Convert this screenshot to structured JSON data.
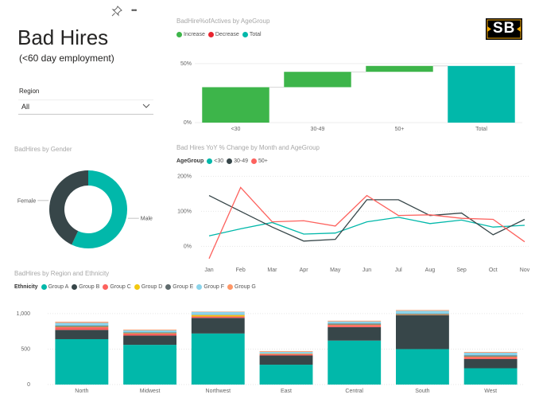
{
  "header": {
    "title": "Bad Hires",
    "subtitle": "(<60 day employment)",
    "logo": "SB"
  },
  "toolbar": {
    "pin_icon": "pin-icon",
    "more_icon": "more-options-icon",
    "more_label": "•••"
  },
  "filter": {
    "label": "Region",
    "value": "All"
  },
  "visuals": {
    "waterfall_title": "BadHire%ofActives by AgeGroup",
    "gender_title": "BadHires by Gender",
    "line_title": "Bad Hires YoY % Change by Month and AgeGroup",
    "stacked_title": "BadHires by Region and Ethnicity"
  },
  "colors": {
    "increase": "#3db54a",
    "decrease": "#e8252f",
    "total": "#01b8aa",
    "teal": "#01b8aa",
    "dark": "#374649",
    "red": "#fd625e",
    "yellow": "#f2c80f",
    "grey": "#5f6b6d",
    "lightblue": "#8ad4eb",
    "orange": "#fe9666"
  },
  "chart_data": [
    {
      "type": "bar",
      "subtype": "waterfall",
      "title": "BadHire%ofActives by AgeGroup",
      "legend": [
        "Increase",
        "Decrease",
        "Total"
      ],
      "categories": [
        "<30",
        "30-49",
        "50+",
        "Total"
      ],
      "values": [
        30,
        13,
        5,
        48
      ],
      "kinds": [
        "increase",
        "increase",
        "increase",
        "total"
      ],
      "yticks": [
        "0%",
        "50%"
      ],
      "ylim": [
        0,
        60
      ]
    },
    {
      "type": "pie",
      "subtype": "donut",
      "title": "BadHires by Gender",
      "labels": [
        "Male",
        "Female"
      ],
      "values": [
        57,
        43
      ]
    },
    {
      "type": "line",
      "title": "Bad Hires YoY % Change by Month and AgeGroup",
      "legend_title": "AgeGroup",
      "categories": [
        "Jan",
        "Feb",
        "Mar",
        "Apr",
        "May",
        "Jun",
        "Jul",
        "Aug",
        "Sep",
        "Oct",
        "Nov"
      ],
      "series": [
        {
          "name": "<30",
          "values": [
            30,
            50,
            68,
            35,
            38,
            70,
            83,
            65,
            75,
            55,
            60
          ]
        },
        {
          "name": "30-49",
          "values": [
            145,
            100,
            55,
            15,
            20,
            133,
            133,
            88,
            95,
            33,
            77
          ]
        },
        {
          "name": "50+",
          "values": [
            -35,
            168,
            70,
            73,
            58,
            145,
            88,
            90,
            80,
            77,
            13
          ]
        }
      ],
      "yticks": [
        "0%",
        "100%",
        "200%"
      ],
      "ylim": [
        -40,
        210
      ]
    },
    {
      "type": "bar",
      "subtype": "stacked",
      "title": "BadHires by Region and Ethnicity",
      "legend_title": "Ethnicity",
      "categories": [
        "North",
        "Midwest",
        "Northwest",
        "East",
        "Central",
        "South",
        "West"
      ],
      "series": [
        {
          "name": "Group A",
          "values": [
            640,
            560,
            720,
            280,
            620,
            500,
            230
          ]
        },
        {
          "name": "Group B",
          "values": [
            130,
            130,
            220,
            130,
            190,
            480,
            130
          ]
        },
        {
          "name": "Group C",
          "values": [
            40,
            30,
            20,
            20,
            30,
            5,
            30
          ]
        },
        {
          "name": "Group D",
          "values": [
            5,
            5,
            20,
            5,
            5,
            5,
            5
          ]
        },
        {
          "name": "Group E",
          "values": [
            15,
            10,
            5,
            5,
            15,
            10,
            15
          ]
        },
        {
          "name": "Group F",
          "values": [
            40,
            30,
            40,
            20,
            30,
            40,
            40
          ]
        },
        {
          "name": "Group G",
          "values": [
            15,
            10,
            5,
            10,
            10,
            10,
            10
          ]
        }
      ],
      "yticks": [
        "0",
        "500",
        "1,000"
      ],
      "ylim": [
        0,
        1100
      ]
    }
  ]
}
